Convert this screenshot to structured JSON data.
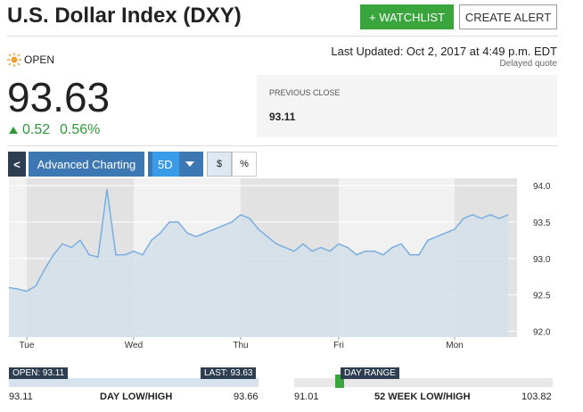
{
  "header": {
    "title": "U.S. Dollar Index (DXY)",
    "watchlist": "+ WATCHLIST",
    "alert": "CREATE ALERT"
  },
  "quote": {
    "status": "OPEN",
    "updated": "Last Updated: Oct 2, 2017 at 4:49 p.m. EDT",
    "delay": "Delayed quote",
    "price": "93.63",
    "change": "0.52",
    "change_pct": "0.56%",
    "prev_close_label": "PREVIOUS CLOSE",
    "prev_close": "93.11"
  },
  "toolbar": {
    "back": "<",
    "advanced": "Advanced Charting",
    "range": "5D",
    "dollar": "$",
    "percent": "%"
  },
  "chart": {
    "type": "area",
    "color": "#7aaee0",
    "values": [
      92.6,
      92.58,
      92.55,
      92.62,
      92.85,
      93.05,
      93.2,
      93.15,
      93.25,
      93.05,
      93.02,
      93.95,
      93.05,
      93.05,
      93.1,
      93.05,
      93.25,
      93.35,
      93.5,
      93.5,
      93.35,
      93.3,
      93.35,
      93.4,
      93.45,
      93.5,
      93.6,
      93.55,
      93.4,
      93.3,
      93.2,
      93.15,
      93.1,
      93.2,
      93.1,
      93.15,
      93.1,
      93.2,
      93.15,
      93.05,
      93.1,
      93.1,
      93.05,
      93.15,
      93.2,
      93.05,
      93.05,
      93.25,
      93.3,
      93.35,
      93.4,
      93.55,
      93.6,
      93.55,
      93.6,
      93.55,
      93.6
    ],
    "xlim": [
      0,
      57
    ],
    "xticks": [
      {
        "value": 2,
        "label": "Tue"
      },
      {
        "value": 14,
        "label": "Wed"
      },
      {
        "value": 26,
        "label": "Thu"
      },
      {
        "value": 37,
        "label": "Fri"
      },
      {
        "value": 50,
        "label": "Mon"
      }
    ],
    "ylim": [
      91.92,
      94.1
    ],
    "yticks": [
      {
        "value": 92,
        "label": "92.0"
      },
      92.5,
      {
        "value": 93,
        "label": "93.0"
      },
      93.5,
      {
        "value": 94,
        "label": "94.0"
      }
    ],
    "grid": true
  },
  "ranges": {
    "open_label": "OPEN: 93.11",
    "last_label": "LAST: 93.63",
    "day_low": "93.11",
    "day_title": "DAY LOW/HIGH",
    "day_high": "93.66",
    "year_low": "91.01",
    "year_title": "52 WEEK LOW/HIGH",
    "year_high": "103.82",
    "day_range": "DAY RANGE"
  }
}
